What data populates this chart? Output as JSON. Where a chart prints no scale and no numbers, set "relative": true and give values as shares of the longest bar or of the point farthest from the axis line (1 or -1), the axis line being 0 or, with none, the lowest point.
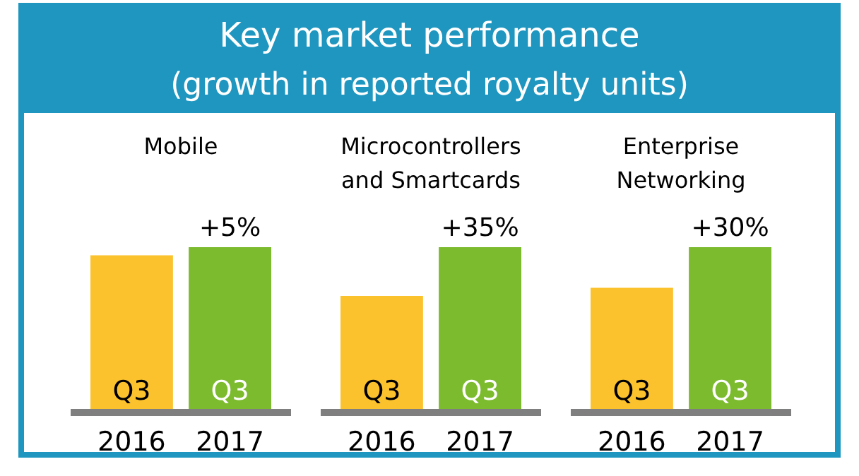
{
  "chart_data": [
    {
      "type": "other",
      "title": "Key market performance",
      "subtitle": "(growth in reported royalty units)"
    },
    {
      "type": "bar",
      "title": "Mobile",
      "categories": [
        "2016",
        "2017"
      ],
      "values": [
        0.95,
        1
      ],
      "colors": [
        "#fcc22e",
        "#7cba2e"
      ],
      "relative": true,
      "annotations": [
        "Q3",
        "Q3",
        "+5%"
      ]
    },
    {
      "type": "bar",
      "title": "Microcontrollers\nand Smartcards",
      "categories": [
        "2016",
        "2017"
      ],
      "values": [
        0.7,
        1
      ],
      "colors": [
        "#fcc22e",
        "#7cba2e"
      ],
      "relative": true,
      "annotations": [
        "Q3",
        "Q3",
        "+35%"
      ]
    },
    {
      "type": "bar",
      "title": "Enterprise\nNetworking",
      "categories": [
        "2016",
        "2017"
      ],
      "values": [
        0.75,
        1
      ],
      "colors": [
        "#fcc22e",
        "#7cba2e"
      ],
      "relative": true,
      "annotations": [
        "Q3",
        "Q3",
        "+30%"
      ]
    }
  ]
}
